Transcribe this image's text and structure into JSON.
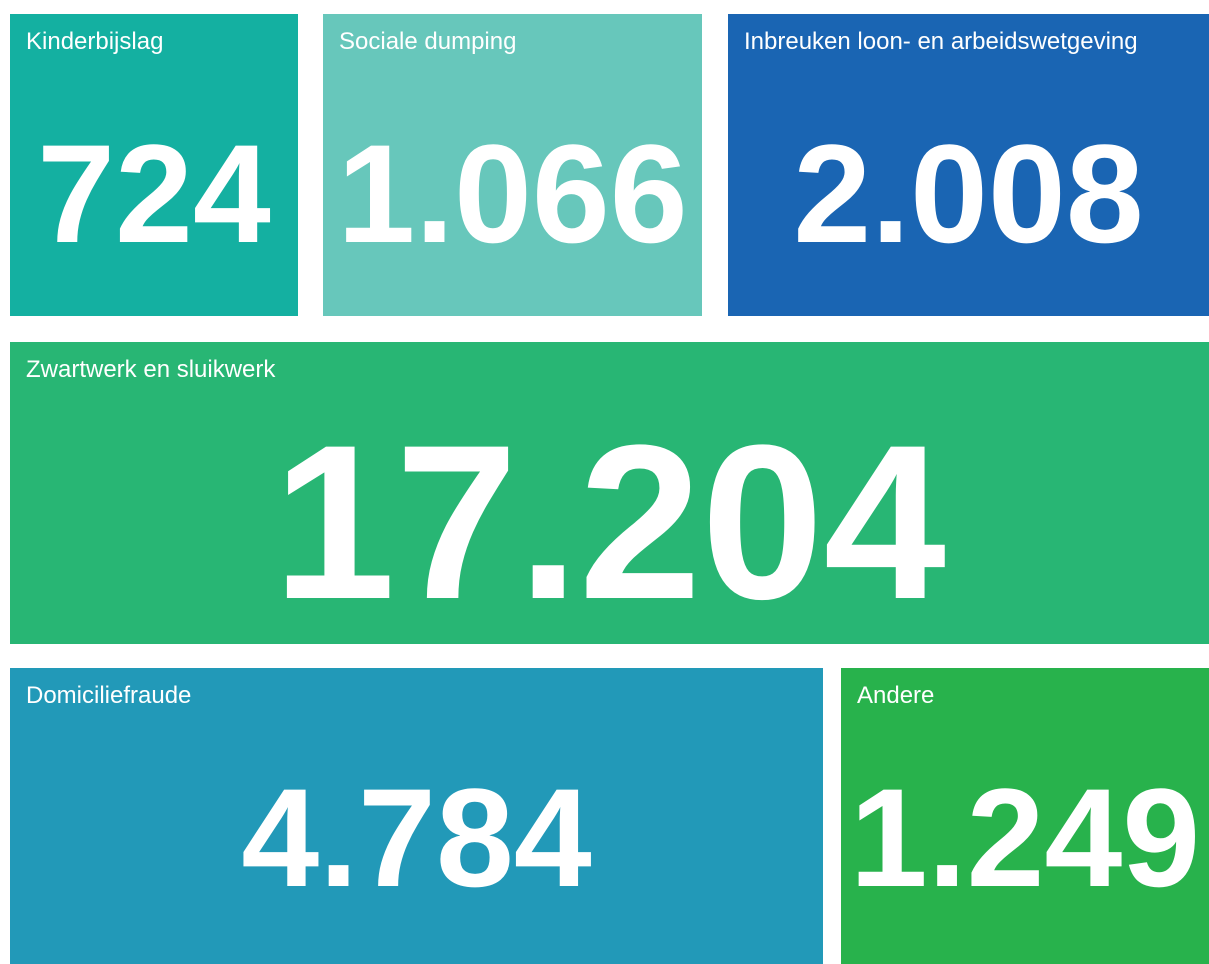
{
  "tiles": [
    {
      "label": "Kinderbijslag",
      "value": "724"
    },
    {
      "label": "Sociale dumping",
      "value": "1.066"
    },
    {
      "label": "Inbreuken loon- en arbeidswetgeving",
      "value": "2.008"
    },
    {
      "label": "Zwartwerk en sluikwerk",
      "value": "17.204"
    },
    {
      "label": "Domiciliefraude",
      "value": "4.784"
    },
    {
      "label": "Andere",
      "value": "1.249"
    }
  ]
}
